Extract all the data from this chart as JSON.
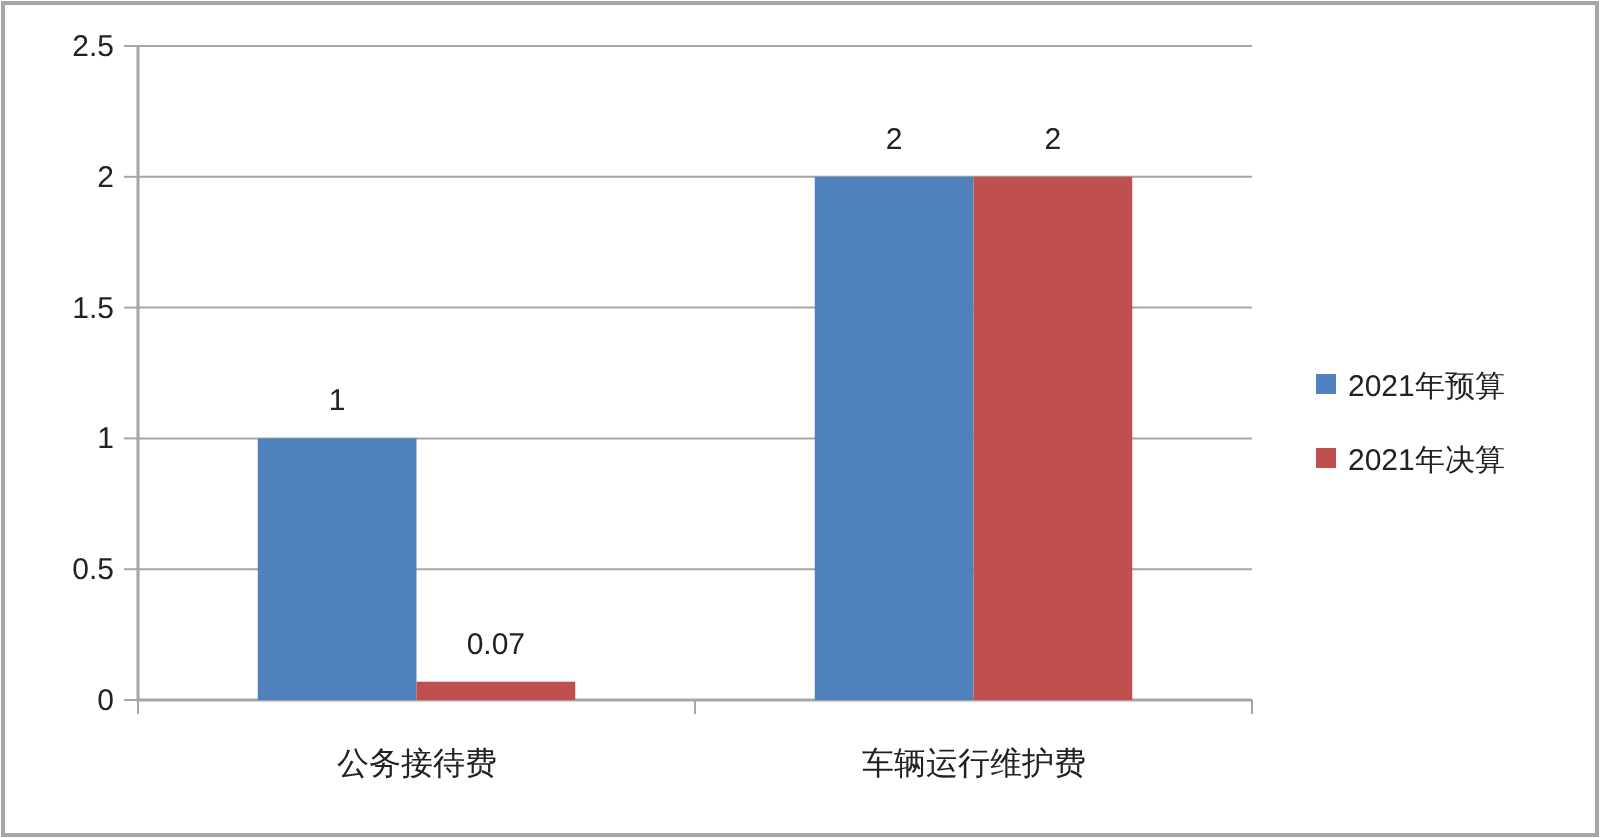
{
  "chart_data": {
    "type": "bar",
    "categories": [
      "公务接待费",
      "车辆运行维护费"
    ],
    "series": [
      {
        "name": "2021年预算",
        "color": "#4f81bd",
        "values": [
          1,
          2
        ]
      },
      {
        "name": "2021年决算",
        "color": "#c0504d",
        "values": [
          0.07,
          2
        ]
      }
    ],
    "ylim": [
      0,
      2.5
    ],
    "yticks": [
      0,
      0.5,
      1,
      1.5,
      2,
      2.5
    ],
    "grid": "y",
    "legend": "right",
    "data_labels": true
  }
}
